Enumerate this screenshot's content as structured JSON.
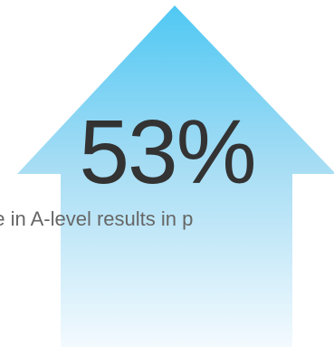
{
  "stat": {
    "value": "53%",
    "caption": "ase in A-level results in p"
  },
  "icon": "up-arrow-icon",
  "colors": {
    "arrow_top": "#4fc8f3",
    "arrow_bottom": "#f3fafe",
    "stat_text": "#333333",
    "caption_text": "#666666",
    "background": "#ffffff"
  }
}
